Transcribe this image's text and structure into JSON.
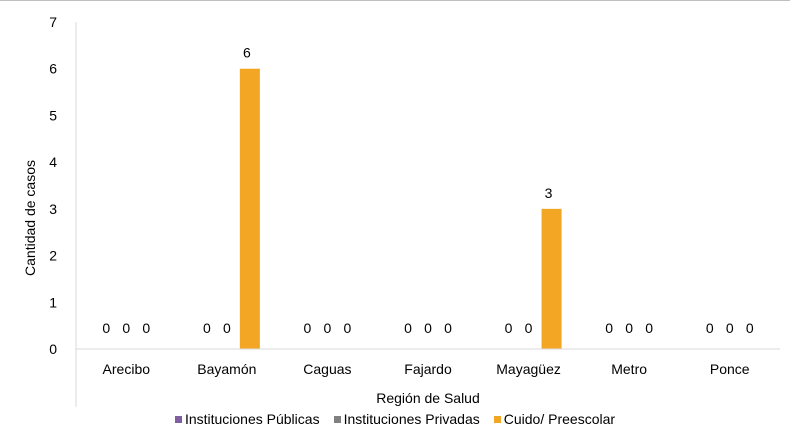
{
  "chart_data": {
    "type": "bar",
    "categories": [
      "Arecibo",
      "Bayamón",
      "Caguas",
      "Fajardo",
      "Mayagüez",
      "Metro",
      "Ponce"
    ],
    "series": [
      {
        "name": "Instituciones Públicas",
        "color": "#7f5f9f",
        "values": [
          0,
          0,
          0,
          0,
          0,
          0,
          0
        ]
      },
      {
        "name": "Instituciones Privadas",
        "color": "#808080",
        "values": [
          0,
          0,
          0,
          0,
          0,
          0,
          0
        ]
      },
      {
        "name": "Cuido/ Preescolar",
        "color": "#f2a623",
        "values": [
          0,
          6,
          0,
          0,
          3,
          0,
          0
        ]
      }
    ],
    "data_labels": [
      [
        "0",
        "0",
        "0"
      ],
      [
        "0",
        "0",
        "6"
      ],
      [
        "0",
        "0",
        "0"
      ],
      [
        "0",
        "0",
        "0"
      ],
      [
        "0",
        "0",
        "3"
      ],
      [
        "0",
        "0",
        "0"
      ],
      [
        "0",
        "0",
        "0"
      ]
    ],
    "xlabel": "Región de Salud",
    "ylabel": "Cantidad de casos",
    "ylim": [
      0,
      7
    ],
    "yticks": [
      0,
      1,
      2,
      3,
      4,
      5,
      6,
      7
    ],
    "grid": false,
    "legend_position": "bottom"
  }
}
